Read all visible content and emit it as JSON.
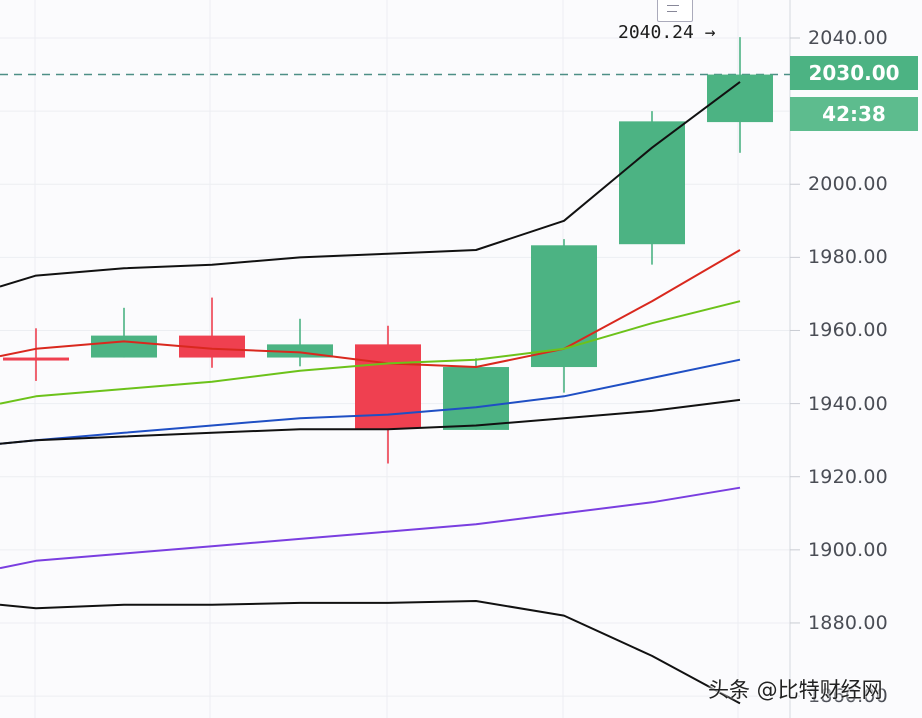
{
  "chart_data": {
    "type": "candlestick",
    "title": "",
    "xlabel": "",
    "ylabel": "",
    "ylim": [
      1860,
      2050
    ],
    "grid": true,
    "y_ticks": [
      "2040.00",
      "2000.00",
      "1980.00",
      "1960.00",
      "1940.00",
      "1920.00",
      "1900.00",
      "1880.00",
      "1860.00"
    ],
    "candles": [
      {
        "open": 1952.6,
        "high": 1960.6,
        "low": 1946.2,
        "close": 1952.0,
        "color": "red"
      },
      {
        "open": 1952.6,
        "high": 1966.2,
        "low": 1952.6,
        "close": 1958.6,
        "color": "green"
      },
      {
        "open": 1958.6,
        "high": 1969.0,
        "low": 1949.8,
        "close": 1952.6,
        "color": "red"
      },
      {
        "open": 1952.6,
        "high": 1963.2,
        "low": 1950.2,
        "close": 1956.2,
        "color": "green"
      },
      {
        "open": 1956.2,
        "high": 1961.3,
        "low": 1923.6,
        "close": 1933.2,
        "color": "red"
      },
      {
        "open": 1932.8,
        "high": 1952.4,
        "low": 1932.8,
        "close": 1950.0,
        "color": "green"
      },
      {
        "open": 1950.0,
        "high": 1985.0,
        "low": 1943.0,
        "close": 1983.3,
        "color": "green"
      },
      {
        "open": 1983.6,
        "high": 2020.0,
        "low": 1978.0,
        "close": 2017.2,
        "color": "green"
      },
      {
        "open": 2017.0,
        "high": 2040.24,
        "low": 2008.6,
        "close": 2030.0,
        "color": "green"
      }
    ],
    "series": [
      {
        "name": "upper-band",
        "color": "#111111",
        "values": [
          1972,
          1975,
          1977,
          1978,
          1980,
          1981,
          1982,
          1990,
          2010,
          2028
        ]
      },
      {
        "name": "ma-red",
        "color": "#d9281e",
        "values": [
          1953,
          1955,
          1957,
          1955,
          1954,
          1951,
          1950,
          1955,
          1968,
          1982
        ]
      },
      {
        "name": "ma-green",
        "color": "#6cc21a",
        "values": [
          1940,
          1942,
          1944,
          1946,
          1949,
          1951,
          1952,
          1955,
          1962,
          1968
        ]
      },
      {
        "name": "ma-blue",
        "color": "#1f4fc4",
        "values": [
          1929,
          1930,
          1932,
          1934,
          1936,
          1937,
          1939,
          1942,
          1947,
          1952
        ]
      },
      {
        "name": "mid-black",
        "color": "#111111",
        "values": [
          1929,
          1930,
          1931,
          1932,
          1933,
          1933,
          1934,
          1936,
          1938,
          1941
        ]
      },
      {
        "name": "ma-purple",
        "color": "#7a3ee0",
        "values": [
          1895,
          1897,
          1899,
          1901,
          1903,
          1905,
          1907,
          1910,
          1913,
          1917
        ]
      },
      {
        "name": "lower-band",
        "color": "#111111",
        "values": [
          1885,
          1884,
          1885,
          1885,
          1885.5,
          1885.5,
          1886,
          1882,
          1871,
          1858
        ]
      }
    ],
    "last_price": 2030.0,
    "high_annotation": 2040.24,
    "countdown": "42:38"
  },
  "axis": {
    "labels": [
      "2040.00",
      "2000.00",
      "1980.00",
      "1960.00",
      "1940.00",
      "1920.00",
      "1900.00",
      "1880.00",
      "1860.00"
    ]
  },
  "last_price_tag": "2030.00",
  "countdown_tag": "42:38",
  "high_label": "2040.24 →",
  "watermark": "头条 @比特财经网",
  "colors": {
    "up": "#4cb383",
    "down": "#ef4050",
    "price_tag": "#4cb383",
    "dashed_line": "#4d8f86",
    "grid": "#eceef2"
  }
}
